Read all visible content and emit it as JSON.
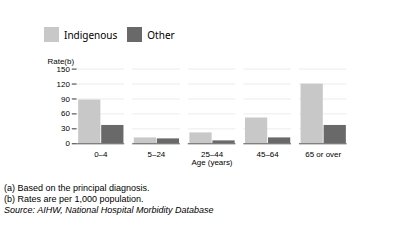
{
  "chart_data": {
    "type": "bar",
    "categories": [
      "0–4",
      "5–24",
      "25–44",
      "45–64",
      "65 or over"
    ],
    "series": [
      {
        "name": "Indigenous",
        "color": "#c8c8c8",
        "values": [
          88,
          12,
          22,
          52,
          120
        ]
      },
      {
        "name": "Other",
        "color": "#696969",
        "values": [
          37,
          10,
          6,
          12,
          37
        ]
      }
    ],
    "xlabel": "Age (years)",
    "ylabel": "Rate(b)",
    "ylim": [
      0,
      150
    ],
    "yticks": [
      0,
      30,
      60,
      90,
      120,
      150
    ],
    "grid": true,
    "legend": "top",
    "annotations": [
      "(a) Based on the principal diagnosis.",
      "(b) Rates are per 1,000 population.",
      "Source: AIHW, National Hospital Morbidity Database"
    ]
  }
}
